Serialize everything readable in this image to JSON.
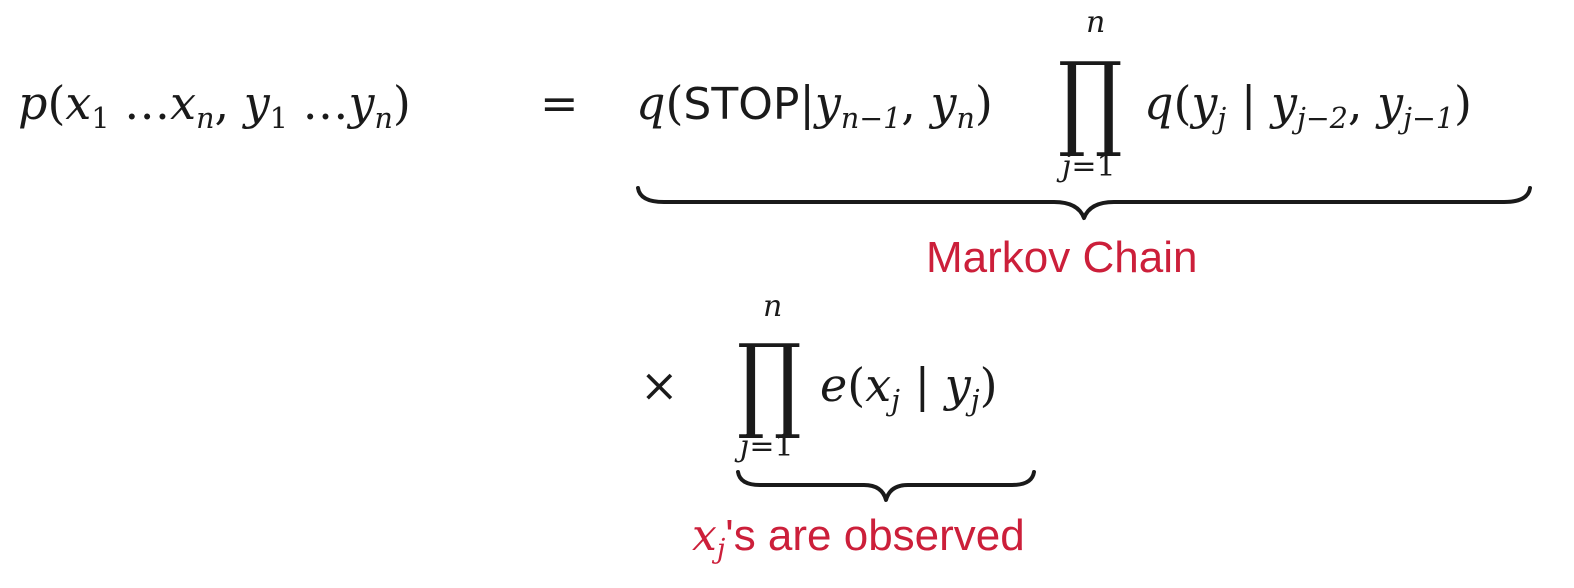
{
  "equation": {
    "lhs": {
      "func": "p",
      "x_var": "x",
      "x_first": "1",
      "x_last": "n",
      "y_var": "y",
      "y_first": "1",
      "y_last": "n",
      "ellipsis": "…"
    },
    "equals": "=",
    "transition_term": {
      "func": "q",
      "stop": "STOP",
      "y_var": "y",
      "cond_first": "n−1",
      "cond_second": "n",
      "prod_symbol": "∏",
      "prod_upper": "n",
      "prod_lower_index": "j",
      "prod_lower_eq": "=1",
      "factor_func": "q",
      "factor_y": "y",
      "factor_sub": "j",
      "factor_cond_first": "j−2",
      "factor_cond_second": "j−1"
    },
    "times": "×",
    "emission_term": {
      "prod_symbol": "∏",
      "prod_upper": "n",
      "prod_lower_index": "j",
      "prod_lower_eq": "=1",
      "func": "e",
      "x_var": "x",
      "x_sub": "j",
      "y_var": "y",
      "y_sub": "j"
    }
  },
  "annotations": {
    "markov_chain": "Markov Chain",
    "observed_var": "x",
    "observed_sub": "j",
    "observed_suffix": "'s are observed"
  },
  "colors": {
    "text": "#1a1a1a",
    "annotation": "#cc1f3a"
  }
}
